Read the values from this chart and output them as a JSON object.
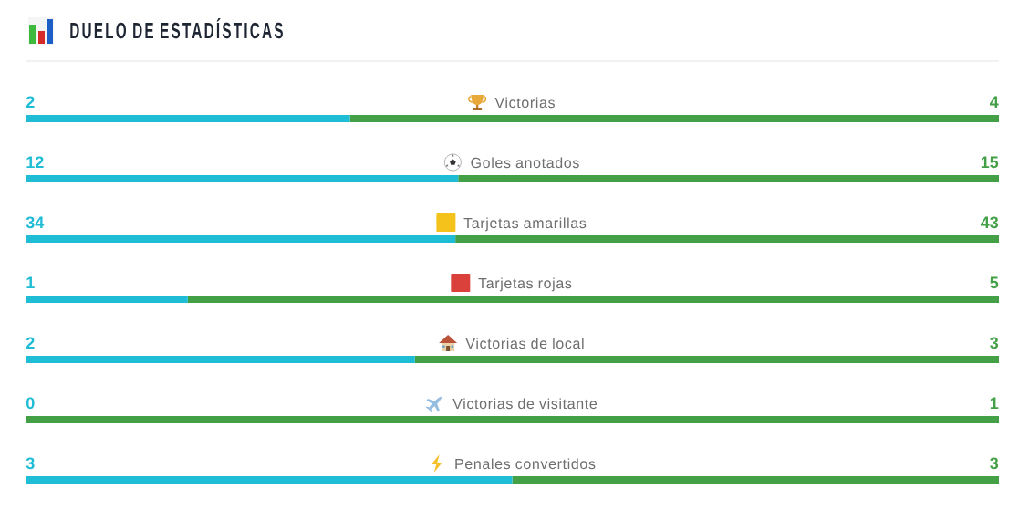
{
  "chart_data": [
    {
      "type": "bar",
      "title": "DUELO DE ESTADÍSTICAS",
      "orientation": "horizontal",
      "stacked": true,
      "categories": [
        "Victorias"
      ],
      "series": [
        {
          "color": "#1fbcd6",
          "values": [
            2
          ]
        },
        {
          "color": "#43a047",
          "values": [
            4
          ]
        }
      ],
      "data_labels": true,
      "tick_labels": "y"
    },
    {
      "type": "bar",
      "orientation": "horizontal",
      "stacked": true,
      "categories": [
        "Goles anotados"
      ],
      "series": [
        {
          "color": "#1fbcd6",
          "values": [
            12
          ]
        },
        {
          "color": "#43a047",
          "values": [
            15
          ]
        }
      ],
      "data_labels": true,
      "tick_labels": "y"
    },
    {
      "type": "bar",
      "orientation": "horizontal",
      "stacked": true,
      "categories": [
        "Tarjetas amarillas"
      ],
      "series": [
        {
          "color": "#1fbcd6",
          "values": [
            34
          ]
        },
        {
          "color": "#43a047",
          "values": [
            43
          ]
        }
      ],
      "data_labels": true,
      "tick_labels": "y"
    },
    {
      "type": "bar",
      "orientation": "horizontal",
      "stacked": true,
      "categories": [
        "Tarjetas rojas"
      ],
      "series": [
        {
          "color": "#1fbcd6",
          "values": [
            1
          ]
        },
        {
          "color": "#43a047",
          "values": [
            5
          ]
        }
      ],
      "data_labels": true,
      "tick_labels": "y"
    },
    {
      "type": "bar",
      "orientation": "horizontal",
      "stacked": true,
      "categories": [
        "Victorias de local"
      ],
      "series": [
        {
          "color": "#1fbcd6",
          "values": [
            2
          ]
        },
        {
          "color": "#43a047",
          "values": [
            3
          ]
        }
      ],
      "data_labels": true,
      "tick_labels": "y"
    },
    {
      "type": "bar",
      "orientation": "horizontal",
      "stacked": true,
      "categories": [
        "Victorias de visitante"
      ],
      "series": [
        {
          "color": "#1fbcd6",
          "values": [
            0
          ]
        },
        {
          "color": "#43a047",
          "values": [
            1
          ]
        }
      ],
      "data_labels": true,
      "tick_labels": "y"
    },
    {
      "type": "bar",
      "orientation": "horizontal",
      "stacked": true,
      "categories": [
        "Penales convertidos"
      ],
      "series": [
        {
          "color": "#1fbcd6",
          "values": [
            3
          ]
        },
        {
          "color": "#43a047",
          "values": [
            3
          ]
        }
      ],
      "data_labels": true,
      "tick_labels": "y"
    }
  ]
}
